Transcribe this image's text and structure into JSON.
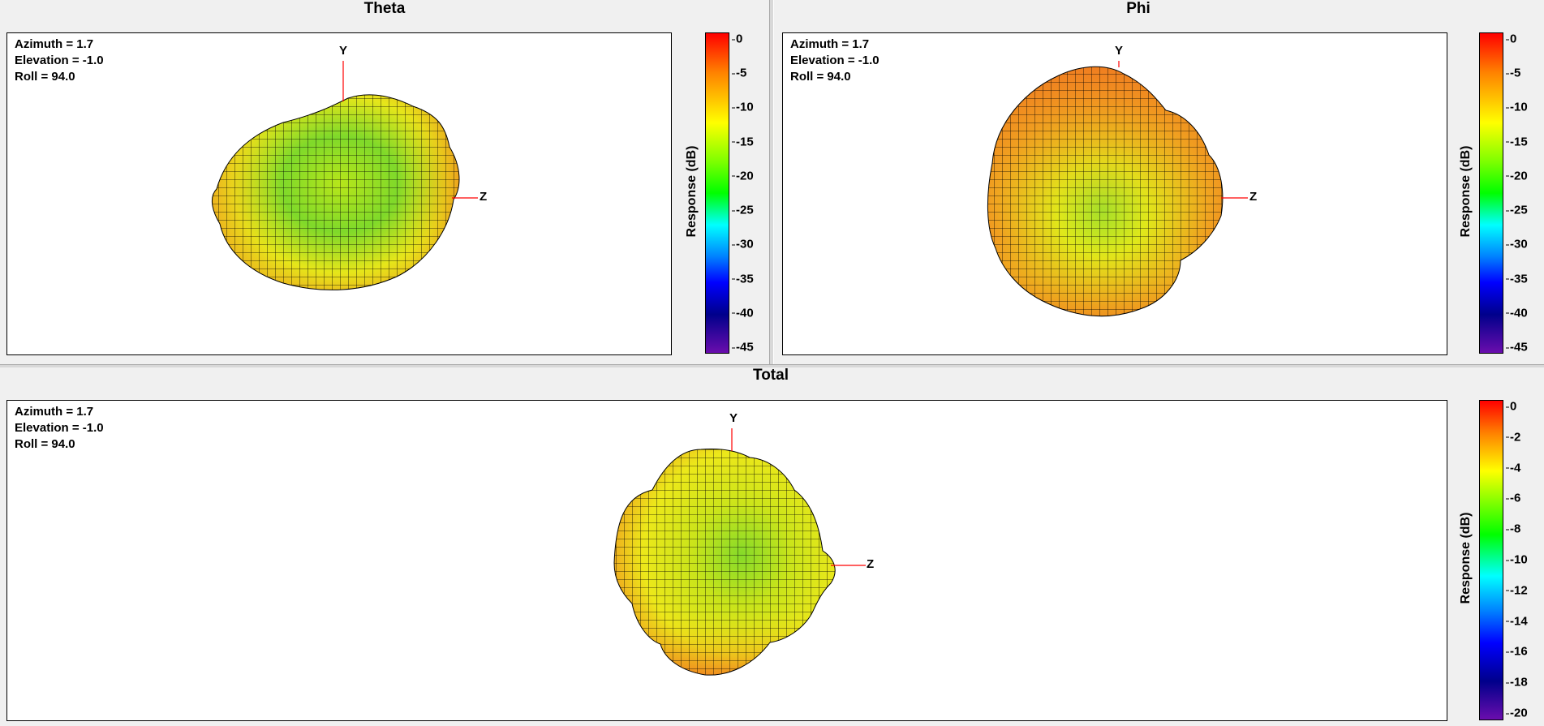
{
  "chart_data": [
    {
      "type": "3d-surface",
      "title": "Theta",
      "view": {
        "azimuth": "Azimuth = 1.7",
        "elevation": "Elevation = -1.0",
        "roll": "Roll = 94.0"
      },
      "axes": {
        "y": "Y",
        "z": "Z"
      },
      "colorbar": {
        "label": "Response  (dB)",
        "range": [
          -45,
          0
        ],
        "ticks": [
          "0",
          "-5",
          "-10",
          "-15",
          "-20",
          "-25",
          "-30",
          "-35",
          "-40",
          "-45"
        ]
      }
    },
    {
      "type": "3d-surface",
      "title": "Phi",
      "view": {
        "azimuth": "Azimuth = 1.7",
        "elevation": "Elevation = -1.0",
        "roll": "Roll = 94.0"
      },
      "axes": {
        "y": "Y",
        "z": "Z"
      },
      "colorbar": {
        "label": "Response  (dB)",
        "range": [
          -45,
          0
        ],
        "ticks": [
          "0",
          "-5",
          "-10",
          "-15",
          "-20",
          "-25",
          "-30",
          "-35",
          "-40",
          "-45"
        ]
      }
    },
    {
      "type": "3d-surface",
      "title": "Total",
      "view": {
        "azimuth": "Azimuth = 1.7",
        "elevation": "Elevation = -1.0",
        "roll": "Roll = 94.0"
      },
      "axes": {
        "y": "Y",
        "z": "Z"
      },
      "colorbar": {
        "label": "Response  (dB)",
        "range": [
          -20,
          0
        ],
        "ticks": [
          "0",
          "-2",
          "-4",
          "-6",
          "-8",
          "-10",
          "-12",
          "-14",
          "-16",
          "-18",
          "-20"
        ]
      }
    }
  ],
  "colors": {
    "axis_line": "#ff0000",
    "mesh_line": "#000000"
  }
}
